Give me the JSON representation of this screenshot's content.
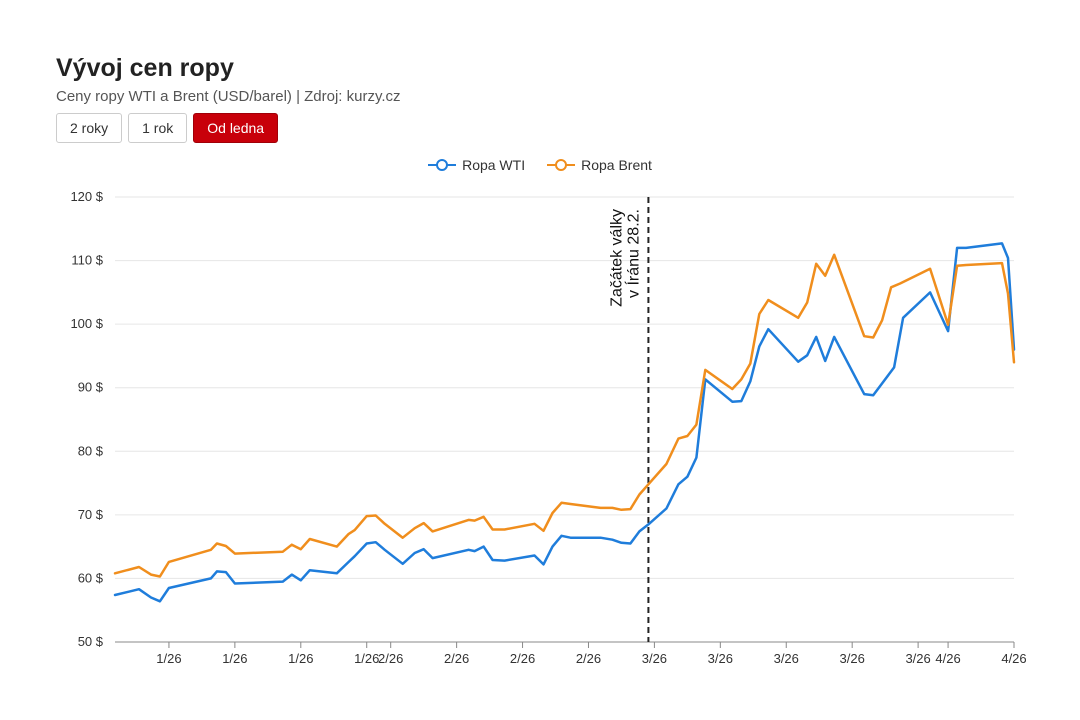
{
  "header": {
    "title": "Vývoj cen ropy",
    "subtitle": "Ceny ropy WTI a Brent (USD/barel) | Zdroj: kurzy.cz"
  },
  "range_buttons": [
    {
      "label": "2 roky",
      "active": false
    },
    {
      "label": "1 rok",
      "active": false
    },
    {
      "label": "Od ledna",
      "active": true
    }
  ],
  "chart_data": {
    "type": "line",
    "title": "Vývoj cen ropy",
    "subtitle": "Ceny ropy WTI a Brent (USD/barel) | Zdroj: kurzy.cz",
    "legend_position": "top-center",
    "grid": true,
    "ylim": [
      50,
      120
    ],
    "y_ticks": [
      "50 $",
      "60 $",
      "70 $",
      "80 $",
      "90 $",
      "100 $",
      "110 $",
      "120 $"
    ],
    "x_ticks": [
      {
        "x": 9,
        "label": "1/26"
      },
      {
        "x": 20,
        "label": "1/26"
      },
      {
        "x": 31,
        "label": "1/26"
      },
      {
        "x": 42,
        "label": "1/26"
      },
      {
        "x": 46,
        "label": "2/26"
      },
      {
        "x": 57,
        "label": "2/26"
      },
      {
        "x": 68,
        "label": "2/26"
      },
      {
        "x": 79,
        "label": "2/26"
      },
      {
        "x": 90,
        "label": "3/26"
      },
      {
        "x": 101,
        "label": "3/26"
      },
      {
        "x": 112,
        "label": "3/26"
      },
      {
        "x": 123,
        "label": "3/26"
      },
      {
        "x": 134,
        "label": "3/26"
      },
      {
        "x": 139,
        "label": "4/26"
      },
      {
        "x": 150,
        "label": "4/26"
      }
    ],
    "xlim": [
      0,
      150
    ],
    "annotation": {
      "x": 89,
      "line1": "Začátek války",
      "line2": "v Íránu 28.2."
    },
    "series": [
      {
        "name": "Ropa WTI",
        "color": "#1f7ddb",
        "points": [
          [
            0,
            57.4
          ],
          [
            4,
            58.3
          ],
          [
            6,
            57.0
          ],
          [
            7.5,
            56.4
          ],
          [
            9,
            58.5
          ],
          [
            16,
            60.0
          ],
          [
            17,
            61.1
          ],
          [
            18.5,
            61.0
          ],
          [
            20,
            59.2
          ],
          [
            28,
            59.5
          ],
          [
            29.5,
            60.6
          ],
          [
            31,
            59.7
          ],
          [
            32.5,
            61.3
          ],
          [
            37,
            60.8
          ],
          [
            39,
            62.6
          ],
          [
            40,
            63.5
          ],
          [
            42,
            65.5
          ],
          [
            43.5,
            65.7
          ],
          [
            45,
            64.5
          ],
          [
            48,
            62.3
          ],
          [
            50,
            64.0
          ],
          [
            51.5,
            64.6
          ],
          [
            53,
            63.2
          ],
          [
            59,
            64.5
          ],
          [
            60,
            64.3
          ],
          [
            61.5,
            65.0
          ],
          [
            63,
            62.9
          ],
          [
            65,
            62.8
          ],
          [
            70,
            63.6
          ],
          [
            71.5,
            62.2
          ],
          [
            73,
            65.0
          ],
          [
            74.5,
            66.7
          ],
          [
            76,
            66.4
          ],
          [
            81,
            66.4
          ],
          [
            83,
            66.1
          ],
          [
            84.5,
            65.6
          ],
          [
            86,
            65.5
          ],
          [
            87.5,
            67.4
          ],
          [
            89,
            68.5
          ],
          [
            92,
            71.0
          ],
          [
            94,
            74.8
          ],
          [
            95.5,
            76.0
          ],
          [
            97,
            79.0
          ],
          [
            98.5,
            91.3
          ],
          [
            103,
            87.8
          ],
          [
            104.5,
            87.9
          ],
          [
            106,
            91.0
          ],
          [
            107.5,
            96.5
          ],
          [
            109,
            99.2
          ],
          [
            114,
            94.1
          ],
          [
            115.5,
            95.1
          ],
          [
            117,
            98.0
          ],
          [
            118.5,
            94.2
          ],
          [
            120,
            98.0
          ],
          [
            125,
            89.0
          ],
          [
            126.5,
            88.8
          ],
          [
            130,
            93.2
          ],
          [
            131.5,
            101.0
          ],
          [
            136,
            105.0
          ],
          [
            139,
            98.9
          ],
          [
            140.5,
            112.0
          ],
          [
            142,
            112.0
          ],
          [
            148,
            112.7
          ],
          [
            149,
            110.4
          ],
          [
            150,
            96.0
          ]
        ]
      },
      {
        "name": "Ropa Brent",
        "color": "#f08e1d",
        "points": [
          [
            0,
            60.8
          ],
          [
            4,
            61.8
          ],
          [
            6,
            60.6
          ],
          [
            7.5,
            60.3
          ],
          [
            9,
            62.6
          ],
          [
            16,
            64.5
          ],
          [
            17,
            65.5
          ],
          [
            18.5,
            65.1
          ],
          [
            20,
            63.9
          ],
          [
            28,
            64.2
          ],
          [
            29.5,
            65.3
          ],
          [
            31,
            64.6
          ],
          [
            32.5,
            66.2
          ],
          [
            37,
            65.0
          ],
          [
            39,
            67.0
          ],
          [
            40,
            67.6
          ],
          [
            42,
            69.8
          ],
          [
            43.5,
            69.9
          ],
          [
            45,
            68.6
          ],
          [
            48,
            66.4
          ],
          [
            50,
            67.9
          ],
          [
            51.5,
            68.7
          ],
          [
            53,
            67.4
          ],
          [
            59,
            69.2
          ],
          [
            60,
            69.1
          ],
          [
            61.5,
            69.7
          ],
          [
            63,
            67.7
          ],
          [
            65,
            67.7
          ],
          [
            70,
            68.6
          ],
          [
            71.5,
            67.5
          ],
          [
            73,
            70.3
          ],
          [
            74.5,
            71.9
          ],
          [
            76,
            71.7
          ],
          [
            81,
            71.1
          ],
          [
            83,
            71.1
          ],
          [
            84.5,
            70.8
          ],
          [
            86,
            70.9
          ],
          [
            87.5,
            73.2
          ],
          [
            89,
            74.8
          ],
          [
            92,
            78.0
          ],
          [
            94,
            82.0
          ],
          [
            95.5,
            82.4
          ],
          [
            97,
            84.2
          ],
          [
            98.5,
            92.8
          ],
          [
            103,
            89.8
          ],
          [
            104.5,
            91.3
          ],
          [
            106,
            93.8
          ],
          [
            107.5,
            101.6
          ],
          [
            109,
            103.8
          ],
          [
            114,
            101.0
          ],
          [
            115.5,
            103.4
          ],
          [
            117,
            109.5
          ],
          [
            118.5,
            107.6
          ],
          [
            120,
            110.9
          ],
          [
            125,
            98.1
          ],
          [
            126.5,
            97.9
          ],
          [
            128,
            100.6
          ],
          [
            129.5,
            105.8
          ],
          [
            131,
            106.4
          ],
          [
            136,
            108.7
          ],
          [
            139,
            99.9
          ],
          [
            140.5,
            109.2
          ],
          [
            142,
            109.3
          ],
          [
            148,
            109.6
          ],
          [
            149,
            104.8
          ],
          [
            150,
            94.0
          ]
        ]
      }
    ]
  }
}
